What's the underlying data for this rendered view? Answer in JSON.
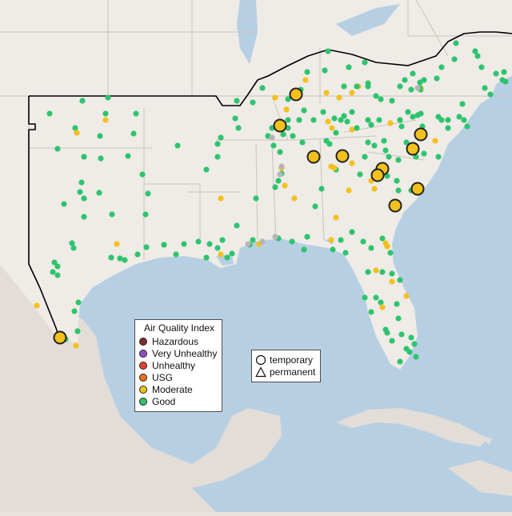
{
  "map": {
    "region": "Southeastern United States",
    "colors": {
      "land_us": "#efebe7",
      "land_other": "#e3ddd7",
      "water": "#b7cfe3",
      "state_border": "#c9c3bd",
      "region_outline": "#000000",
      "marker_outline": "#222222"
    }
  },
  "legend": {
    "title": "Air Quality Index",
    "categories": [
      {
        "label": "Hazardous",
        "color": "#7e2b2b"
      },
      {
        "label": "Very Unhealthy",
        "color": "#8f4fc3"
      },
      {
        "label": "Unhealthy",
        "color": "#e6412f"
      },
      {
        "label": "USG",
        "color": "#e6731c"
      },
      {
        "label": "Moderate",
        "color": "#f2c11d"
      },
      {
        "label": "Good",
        "color": "#2ec46e"
      }
    ],
    "no_data_color": "#b5b5b5"
  },
  "monitor_types": {
    "items": [
      {
        "label": "temporary",
        "shape": "circle-icon"
      },
      {
        "label": "permanent",
        "shape": "triangle-icon"
      }
    ]
  }
}
